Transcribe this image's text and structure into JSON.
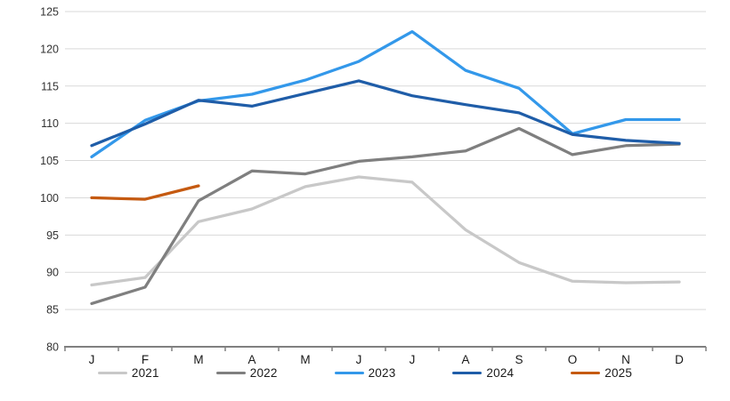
{
  "chart_data": {
    "type": "line",
    "title": "",
    "xlabel": "",
    "ylabel": "",
    "categories": [
      "J",
      "F",
      "M",
      "A",
      "M",
      "J",
      "J",
      "A",
      "S",
      "O",
      "N",
      "D"
    ],
    "series": [
      {
        "name": "2021",
        "color": "#c8c8c8",
        "values": [
          88.3,
          89.3,
          96.8,
          98.5,
          101.5,
          102.8,
          102.1,
          95.7,
          91.3,
          88.8,
          88.6,
          88.7
        ]
      },
      {
        "name": "2022",
        "color": "#7f7f7f",
        "values": [
          85.8,
          88.0,
          99.6,
          103.6,
          103.2,
          104.9,
          105.5,
          106.3,
          109.3,
          105.8,
          107.0,
          107.2
        ]
      },
      {
        "name": "2023",
        "color": "#3398ea",
        "values": [
          105.5,
          110.4,
          113.0,
          113.9,
          115.8,
          118.3,
          122.3,
          117.1,
          114.7,
          108.6,
          110.5,
          110.5
        ]
      },
      {
        "name": "2024",
        "color": "#1f5da8",
        "values": [
          107.0,
          109.9,
          113.1,
          112.3,
          114.0,
          115.7,
          113.7,
          112.5,
          111.4,
          108.5,
          107.7,
          107.3
        ]
      },
      {
        "name": "2025",
        "color": "#c55a11",
        "values": [
          100.0,
          99.8,
          101.6
        ]
      }
    ],
    "ylim": [
      80,
      125
    ],
    "ytick_step": 5,
    "ytick_labels": [
      "80",
      "85",
      "90",
      "95",
      "100",
      "105",
      "110",
      "115",
      "120",
      "125"
    ],
    "grid": "horizontal-on",
    "gridline_color": "#d9d9d9",
    "axis_line_color": "#808080",
    "legend_position": "bottom",
    "legend_entries": [
      "2021",
      "2022",
      "2023",
      "2024",
      "2025"
    ]
  }
}
